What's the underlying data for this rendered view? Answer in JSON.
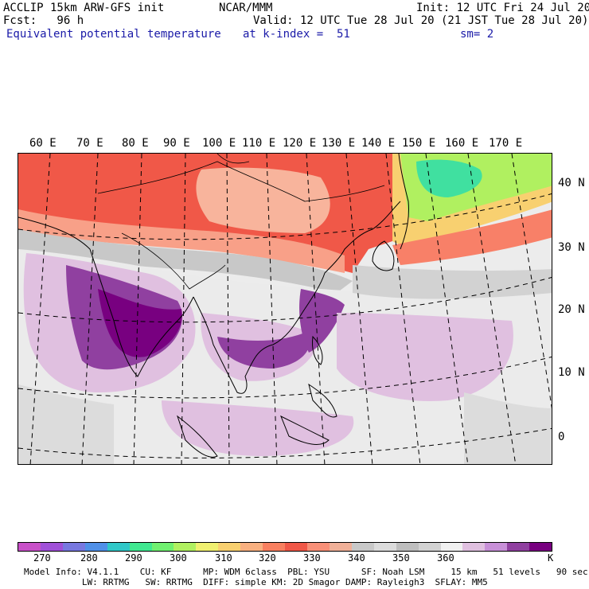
{
  "header": {
    "left1": "ACCLIP 15km ARW-GFS init",
    "left2": "Fcst:   96 h",
    "center1": "NCAR/MMM",
    "init": "Init: 12 UTC Fri 24 Jul 20",
    "valid": "Valid: 12 UTC Tue 28 Jul 20 (21 JST Tue 28 Jul 20)",
    "field": "Equivalent potential temperature",
    "level": "at k-index =  51",
    "smoothing": "sm= 2"
  },
  "map": {
    "lon_labels": [
      "60 E",
      "70 E",
      "80 E",
      "90 E",
      "100 E",
      "110 E",
      "120 E",
      "130 E",
      "140 E",
      "150 E",
      "160 E",
      "170 E"
    ],
    "lat_labels": [
      "40 N",
      "30 N",
      "20 N",
      "10 N",
      "0"
    ]
  },
  "colorbar": {
    "colors": [
      "#c850c8",
      "#a050d8",
      "#7878e0",
      "#5090e8",
      "#30c8c8",
      "#40e890",
      "#70f070",
      "#b0f060",
      "#f0f070",
      "#f8d070",
      "#f8b080",
      "#f88060",
      "#f05848",
      "#f89078",
      "#f0b098",
      "#c8c8c8",
      "#dcdcdc",
      "#bebebe",
      "#d2d2d2",
      "#f0f0f0",
      "#e0c0e0",
      "#c890d8",
      "#9040a0",
      "#780080"
    ],
    "labels": [
      "270",
      "280",
      "290",
      "300",
      "310",
      "320",
      "330",
      "340",
      "350",
      "360",
      "K"
    ]
  },
  "footer": {
    "line1": "Model Info: V4.1.1    CU: KF      MP: WDM 6class  PBL: YSU      SF: Noah LSM     15 km   51 levels   90 sec",
    "line2": "           LW: RRTMG   SW: RRTMG  DIFF: simple KM: 2D Smagor DAMP: Rayleigh3  SFLAY: MM5"
  }
}
